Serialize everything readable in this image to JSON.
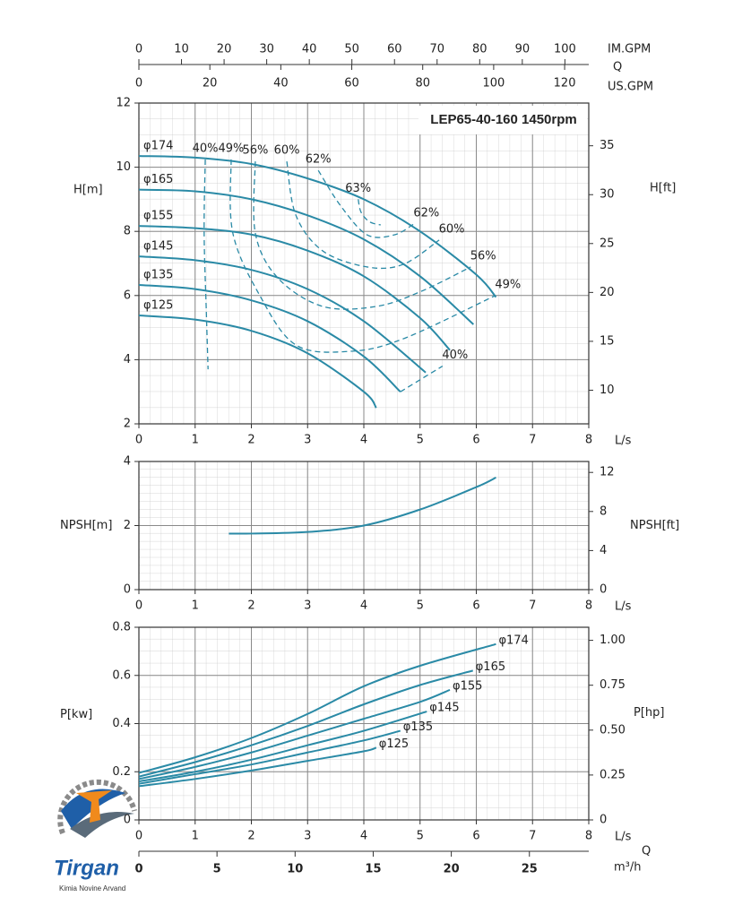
{
  "chart_data": [
    {
      "type": "line",
      "title": "LEP65-40-160 1450rpm",
      "xlabel": "L/s",
      "ylabel": "H[m]",
      "y2label": "H[ft]",
      "xlim": [
        0,
        8
      ],
      "xticks": [
        0,
        1,
        2,
        3,
        4,
        5,
        6,
        7,
        8
      ],
      "ylim": [
        2,
        12
      ],
      "yticks": [
        2,
        4,
        6,
        8,
        10,
        12
      ],
      "y2lim": [
        6.56,
        39.37
      ],
      "y2ticks": [
        10,
        15,
        20,
        25,
        30,
        35
      ],
      "grid": true,
      "series_label_position": "start",
      "series": [
        {
          "name": "φ174",
          "color": "#2a8aa6",
          "x": [
            0,
            1,
            2,
            3,
            4,
            5,
            6,
            6.35
          ],
          "values": [
            10.35,
            10.3,
            10.1,
            9.65,
            9.0,
            8.0,
            6.65,
            5.95
          ]
        },
        {
          "name": "φ165",
          "color": "#2a8aa6",
          "x": [
            0,
            1,
            2,
            3,
            4,
            5,
            5.95
          ],
          "values": [
            9.3,
            9.25,
            9.0,
            8.5,
            7.75,
            6.6,
            5.1
          ]
        },
        {
          "name": "φ155",
          "color": "#2a8aa6",
          "x": [
            0,
            1,
            2,
            3,
            4,
            5,
            5.53
          ],
          "values": [
            8.17,
            8.1,
            7.9,
            7.4,
            6.6,
            5.3,
            4.3
          ]
        },
        {
          "name": "φ145",
          "color": "#2a8aa6",
          "x": [
            0,
            1,
            2,
            3,
            4,
            5.1
          ],
          "values": [
            7.22,
            7.1,
            6.8,
            6.2,
            5.2,
            3.6
          ]
        },
        {
          "name": "φ135",
          "color": "#2a8aa6",
          "x": [
            0,
            1,
            2,
            3,
            4,
            4.65
          ],
          "values": [
            6.33,
            6.2,
            5.85,
            5.2,
            4.1,
            3.0
          ]
        },
        {
          "name": "φ125",
          "color": "#2a8aa6",
          "x": [
            0,
            1,
            2,
            3,
            4,
            4.22
          ],
          "values": [
            5.38,
            5.25,
            4.9,
            4.2,
            3.0,
            2.5
          ]
        }
      ],
      "efficiency_curves": [
        {
          "name": "40%",
          "color": "#2a8aa6",
          "x": [
            1.18,
            1.16,
            1.2,
            1.23,
            null,
            4.65,
            5.4
          ],
          "values": [
            10.24,
            7.95,
            5.44,
            3.7,
            null,
            3.0,
            3.8
          ]
        },
        {
          "name": "49%",
          "color": "#2a8aa6",
          "x": [
            1.64,
            1.67,
            2.15,
            2.79,
            3.75,
            4.7,
            6.34
          ],
          "values": [
            10.24,
            7.95,
            6.0,
            4.46,
            4.26,
            4.65,
            6.0
          ]
        },
        {
          "name": "56%",
          "color": "#2a8aa6",
          "x": [
            2.07,
            2.07,
            2.47,
            3.27,
            4.22,
            5.02,
            5.9
          ],
          "values": [
            10.18,
            7.95,
            6.55,
            5.66,
            5.66,
            6.13,
            6.89
          ]
        },
        {
          "name": "60%",
          "color": "#2a8aa6",
          "x": [
            2.63,
            2.79,
            3.27,
            4.06,
            4.7,
            5.34
          ],
          "values": [
            10.18,
            8.51,
            7.39,
            6.89,
            6.97,
            7.73
          ]
        },
        {
          "name": "62%",
          "color": "#2a8aa6",
          "x": [
            3.19,
            3.59,
            4.06,
            4.54,
            4.89
          ],
          "values": [
            9.9,
            8.79,
            7.89,
            7.89,
            8.23
          ]
        },
        {
          "name": "63%",
          "color": "#2a8aa6",
          "x": [
            3.9,
            3.95,
            4.1,
            4.3
          ],
          "values": [
            9.0,
            8.6,
            8.3,
            8.2
          ]
        }
      ],
      "top_axis_title": "Q",
      "top_axes": [
        {
          "label": "IM.GPM",
          "lim": [
            0,
            105.6
          ],
          "ticks": [
            0,
            10,
            20,
            30,
            40,
            50,
            60,
            70,
            80,
            90,
            100
          ]
        },
        {
          "label": "US.GPM",
          "lim": [
            0,
            126.8
          ],
          "ticks": [
            0,
            20,
            40,
            60,
            80,
            100,
            120
          ]
        }
      ]
    },
    {
      "type": "line",
      "xlabel": "L/s",
      "ylabel": "NPSH[m]",
      "y2label": "NPSH[ft]",
      "xlim": [
        0,
        8
      ],
      "xticks": [
        0,
        1,
        2,
        3,
        4,
        5,
        6,
        7,
        8
      ],
      "ylim": [
        0,
        4
      ],
      "yticks": [
        0,
        2,
        4
      ],
      "y2lim": [
        0,
        13.12
      ],
      "y2ticks": [
        0,
        4,
        8,
        12
      ],
      "grid": true,
      "series": [
        {
          "color": "#2a8aa6",
          "x": [
            1.6,
            2,
            3,
            4,
            5,
            6,
            6.35
          ],
          "values": [
            1.75,
            1.75,
            1.8,
            2.0,
            2.5,
            3.2,
            3.5
          ]
        }
      ]
    },
    {
      "type": "line",
      "xlabel": "L/s",
      "ylabel": "P[kw]",
      "y2label": "P[hp]",
      "xlim": [
        0,
        8
      ],
      "xticks": [
        0,
        1,
        2,
        3,
        4,
        5,
        6,
        7,
        8
      ],
      "ylim": [
        0,
        0.8
      ],
      "yticks": [
        0,
        0.2,
        0.4,
        0.6,
        0.8
      ],
      "y2lim": [
        0,
        1.0728
      ],
      "y2ticks": [
        0,
        0.25,
        {
          "value": 0.5,
          "label": "0.50"
        },
        0.75,
        {
          "value": 1,
          "label": "1.00"
        }
      ],
      "grid": true,
      "series_label_position": "end",
      "series": [
        {
          "name": "φ174",
          "color": "#2a8aa6",
          "x": [
            0,
            1,
            2,
            3,
            4,
            5,
            6.35
          ],
          "values": [
            0.195,
            0.26,
            0.34,
            0.44,
            0.555,
            0.64,
            0.73
          ]
        },
        {
          "name": "φ165",
          "color": "#2a8aa6",
          "x": [
            0,
            1,
            2,
            3,
            4,
            5,
            5.94
          ],
          "values": [
            0.18,
            0.24,
            0.31,
            0.39,
            0.48,
            0.56,
            0.62
          ]
        },
        {
          "name": "φ155",
          "color": "#2a8aa6",
          "x": [
            0,
            1,
            2,
            3,
            4,
            5,
            5.53
          ],
          "values": [
            0.17,
            0.22,
            0.28,
            0.35,
            0.42,
            0.49,
            0.54
          ]
        },
        {
          "name": "φ145",
          "color": "#2a8aa6",
          "x": [
            0,
            1,
            2,
            3,
            4,
            5.12
          ],
          "values": [
            0.16,
            0.2,
            0.25,
            0.31,
            0.37,
            0.45
          ]
        },
        {
          "name": "φ135",
          "color": "#2a8aa6",
          "x": [
            0,
            1,
            2,
            3,
            4,
            4.65
          ],
          "values": [
            0.15,
            0.19,
            0.23,
            0.28,
            0.33,
            0.37
          ]
        },
        {
          "name": "φ125",
          "color": "#2a8aa6",
          "x": [
            0,
            1,
            2,
            3,
            4,
            4.22
          ],
          "values": [
            0.14,
            0.17,
            0.205,
            0.245,
            0.285,
            0.3
          ]
        }
      ],
      "bottom_axis": {
        "title": "Q",
        "label": "m³/h",
        "lim": [
          0,
          28.8
        ],
        "ticks": [
          0,
          5,
          10,
          15,
          20,
          25
        ]
      }
    }
  ],
  "logo": {
    "name": "Tirgan",
    "subtitle": "Kimia Novine Arvand"
  }
}
